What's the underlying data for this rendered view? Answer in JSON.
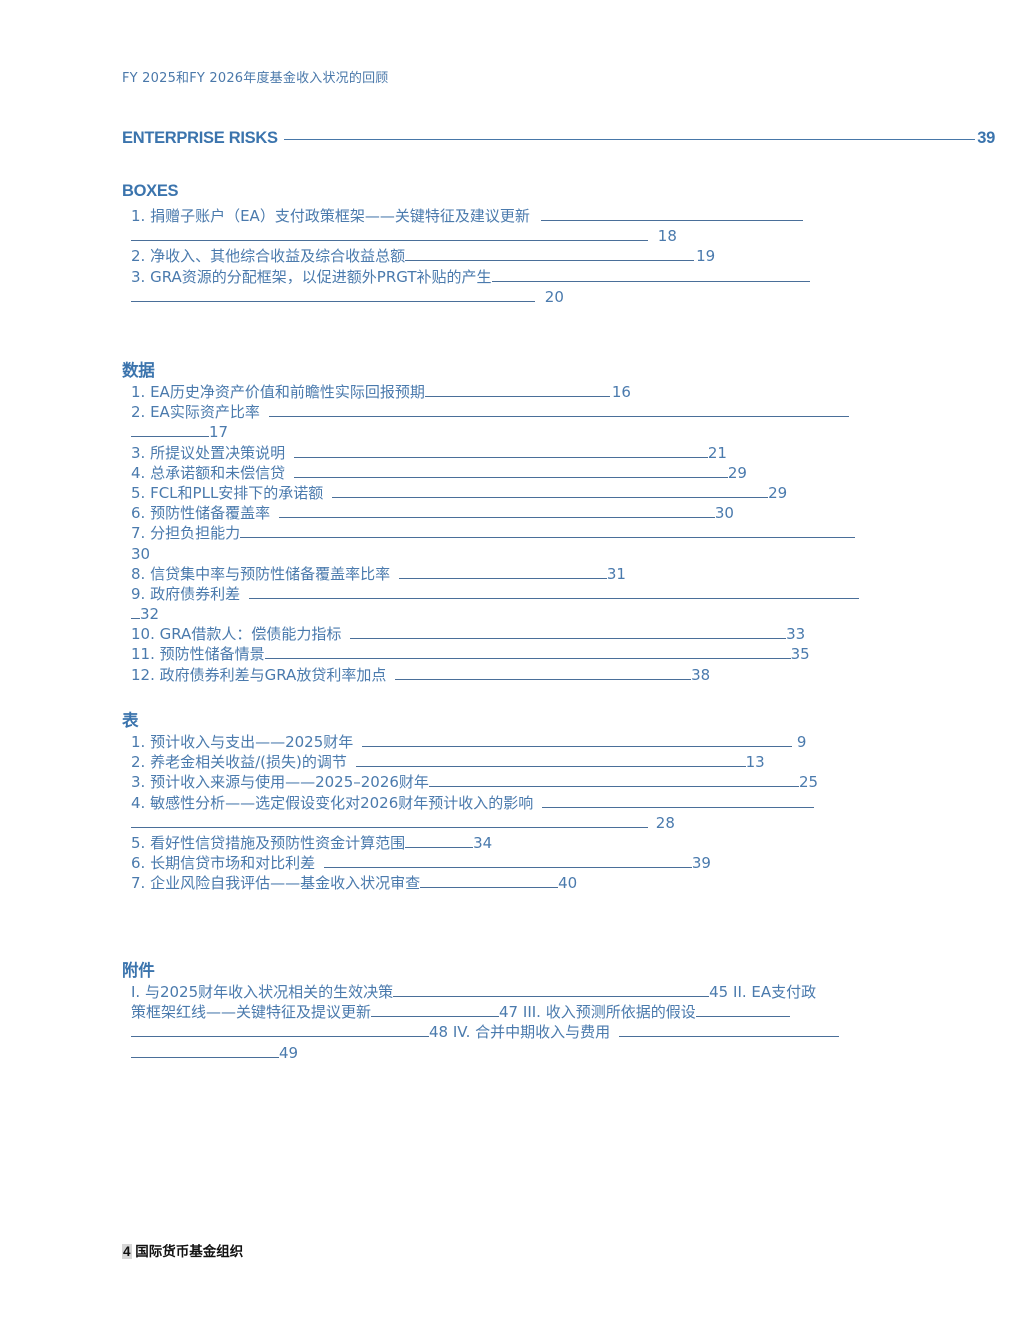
{
  "header": {
    "title": "FY 2025和FY 2026年度基金收入状况的回顾"
  },
  "enterprise_risks": {
    "label": "ENTERPRISE RISKS",
    "page": "39"
  },
  "boxes": {
    "heading": "BOXES",
    "items": [
      {
        "text": "1. 捐赠子账户（EA）支付政策框架——关键特征及建议更新",
        "page": "18"
      },
      {
        "text": "2. 净收入、其他综合收益及综合收益总额",
        "page": "19"
      },
      {
        "text": "3. GRA资源的分配框架，以促进额外PRGT补贴的产生",
        "page": "20"
      }
    ]
  },
  "figures": {
    "heading": "数据",
    "items": [
      {
        "text": "1. EA历史净资产价值和前瞻性实际回报预期",
        "page": "16"
      },
      {
        "text": "2. EA实际资产比率",
        "page": "17"
      },
      {
        "text": "3. 所提议处置决策说明",
        "page": "21"
      },
      {
        "text": "4. 总承诺额和未偿信贷",
        "page": "29"
      },
      {
        "text": "5. FCL和PLL安排下的承诺额",
        "page": "29"
      },
      {
        "text": "6. 预防性储备覆盖率",
        "page": "30"
      },
      {
        "text": "7. 分担负担能力",
        "page": "30"
      },
      {
        "text": "8. 信贷集中率与预防性储备覆盖率比率",
        "page": "31"
      },
      {
        "text": "9. 政府债券利差",
        "page": "32"
      },
      {
        "text": "10. GRA借款人：偿债能力指标",
        "page": "33"
      },
      {
        "text": "11. 预防性储备情景",
        "page": "35"
      },
      {
        "text": "12. 政府债券利差与GRA放贷利率加点",
        "page": "38"
      }
    ]
  },
  "tables": {
    "heading": "表",
    "items": [
      {
        "text": "1. 预计收入与支出——2025财年",
        "page": "9"
      },
      {
        "text": "2. 养老金相关收益/(损失)的调节",
        "page": "13"
      },
      {
        "text": "3. 预计收入来源与使用——2025–2026财年",
        "page": "25"
      },
      {
        "text": "4. 敏感性分析——选定假设变化对2026财年预计收入的影响",
        "page": "28"
      },
      {
        "text": "5. 看好性信贷措施及预防性资金计算范围",
        "page": "34"
      },
      {
        "text": "6. 长期信贷市场和对比利差",
        "page": "39"
      },
      {
        "text": "7. 企业风险自我评估——基金收入状况审查",
        "page": "40"
      }
    ]
  },
  "annexes": {
    "heading": "附件",
    "items": [
      {
        "text": "I. 与2025财年收入状况相关的生效决策",
        "page": "45"
      },
      {
        "text": "II. EA支付政策框架红线——关键特征及提议更新",
        "page": "47"
      },
      {
        "text": "III. 收入预测所依据的假设",
        "page": "48"
      },
      {
        "text": "IV. 合并中期收入与费用",
        "page": "49"
      }
    ]
  },
  "footer": {
    "page_number": "4",
    "org": "国际货币基金组织"
  }
}
